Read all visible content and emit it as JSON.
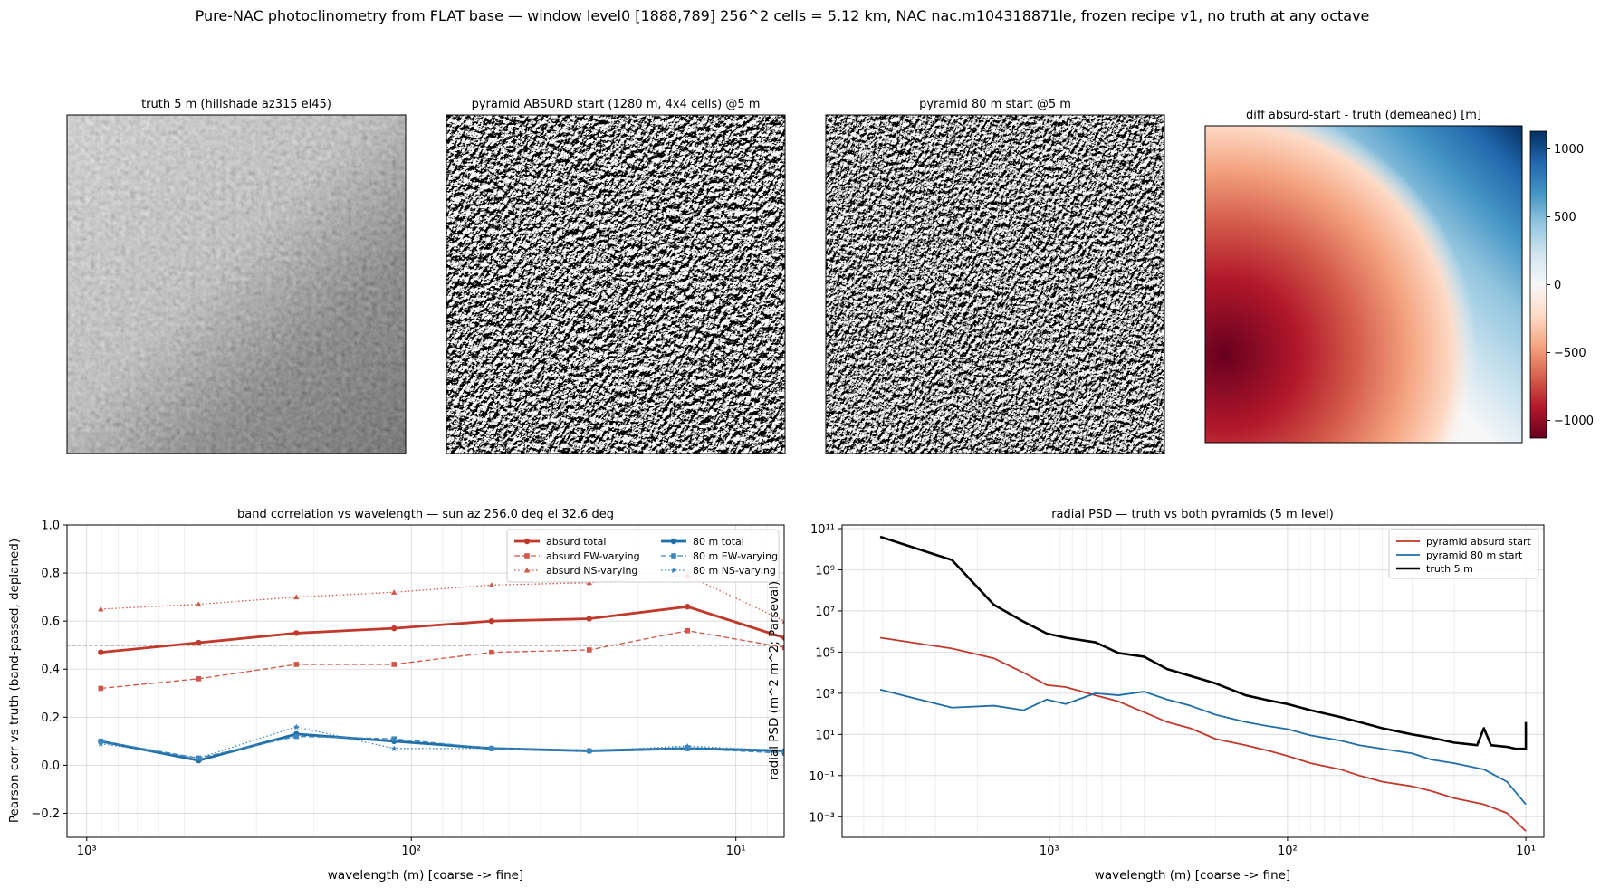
{
  "suptitle": "Pure-NAC photoclinometry from FLAT base — window level0 [1888,789] 256^2 cells = 5.12 km, NAC nac.m104318871le, frozen recipe v1, no truth at any octave",
  "panels": {
    "truth": {
      "title": "truth 5 m (hillshade az315 el45)"
    },
    "absurd": {
      "title": "pyramid ABSURD start (1280 m, 4x4 cells) @5 m"
    },
    "start80": {
      "title": "pyramid 80 m start @5 m"
    },
    "diff": {
      "title": "diff absurd-start - truth (demeaned) [m]",
      "colorbar_ticks": [
        "1000",
        "500",
        "0",
        "−500",
        "−1000"
      ],
      "colorbar_range": [
        -1130,
        1130
      ],
      "colormap": [
        "#67001f",
        "#b2182b",
        "#d6604d",
        "#f4a582",
        "#fddbc7",
        "#f7f7f7",
        "#d1e5f0",
        "#92c5de",
        "#4393c3",
        "#2166ac",
        "#053061"
      ]
    }
  },
  "chart_data": [
    {
      "type": "line",
      "title": "band correlation vs wavelength — sun az 256.0 deg el 32.6 deg",
      "xlabel": "wavelength (m)  [coarse -> fine]",
      "ylabel": "Pearson corr vs truth (band-passed, deplaned)",
      "xscale": "log",
      "xaxis_reversed": true,
      "xlim": [
        1150,
        7.1
      ],
      "ylim": [
        -0.3,
        1.0
      ],
      "xtick_labels": [
        "10³",
        "10²",
        "10¹"
      ],
      "ytick_labels": [
        "−0.2",
        "0.0",
        "0.2",
        "0.4",
        "0.6",
        "0.8",
        "1.0"
      ],
      "reference_line": {
        "y": 0.5,
        "style": "dashed",
        "color": "#000000"
      },
      "grid": true,
      "legend": {
        "placement": "top-right",
        "columns": 2
      },
      "x": [
        905,
        452,
        226,
        113,
        56.6,
        28.3,
        14.1,
        7.07
      ],
      "series": [
        {
          "name": "absurd total",
          "color": "#c0392b",
          "style": "solid",
          "marker": "circle",
          "values": [
            0.47,
            0.51,
            0.55,
            0.57,
            0.6,
            0.61,
            0.66,
            0.53
          ]
        },
        {
          "name": "absurd EW-varying",
          "color": "#d15548",
          "style": "dashed",
          "marker": "square",
          "values": [
            0.32,
            0.36,
            0.42,
            0.42,
            0.47,
            0.48,
            0.56,
            0.49
          ]
        },
        {
          "name": "absurd NS-varying",
          "color": "#d15548",
          "style": "dotted",
          "marker": "triangle",
          "values": [
            0.65,
            0.67,
            0.7,
            0.72,
            0.75,
            0.76,
            0.79,
            0.6
          ]
        },
        {
          "name": "80 m total",
          "color": "#1f6ea8",
          "style": "solid",
          "marker": "circle",
          "values": [
            0.1,
            0.02,
            0.13,
            0.1,
            0.07,
            0.06,
            0.07,
            0.06
          ]
        },
        {
          "name": "80 m EW-varying",
          "color": "#3c86bf",
          "style": "dashed",
          "marker": "square",
          "values": [
            0.1,
            0.03,
            0.12,
            0.11,
            0.07,
            0.06,
            0.07,
            0.05
          ]
        },
        {
          "name": "80 m NS-varying",
          "color": "#3c86bf",
          "style": "dotted",
          "marker": "star",
          "values": [
            0.09,
            0.03,
            0.16,
            0.07,
            0.07,
            0.06,
            0.08,
            0.06
          ]
        }
      ]
    },
    {
      "type": "line",
      "title": "radial PSD — truth vs both pyramids (5 m level)",
      "xlabel": "wavelength (m)  [coarse -> fine]",
      "ylabel": "radial PSD (m^2 m^2; Parseval)",
      "xscale": "log",
      "yscale": "log",
      "xaxis_reversed": true,
      "xlim": [
        7400,
        8.4
      ],
      "ylim": [
        0.0001,
        150000000000
      ],
      "xtick_labels": [
        "10³",
        "10²",
        "10¹"
      ],
      "ytick_labels": [
        "10¹¹",
        "10⁹",
        "10⁷",
        "10⁵",
        "10³",
        "10¹",
        "10⁻¹",
        "10⁻³"
      ],
      "grid": true,
      "legend": {
        "placement": "top-right"
      },
      "series": [
        {
          "name": "pyramid absurd start",
          "color": "#c0392b",
          "x": [
            5120,
            2560,
            1707,
            1280,
            1024,
            853,
            640,
            512,
            400,
            320,
            256,
            200,
            150,
            120,
            100,
            80,
            60,
            50,
            40,
            30,
            25,
            20,
            15,
            12,
            10
          ],
          "values": [
            500000,
            150000,
            50000,
            10000,
            2500,
            2000,
            800,
            400,
            120,
            40,
            20,
            6,
            3,
            1.6,
            0.9,
            0.4,
            0.2,
            0.1,
            0.05,
            0.03,
            0.018,
            0.008,
            0.004,
            0.0015,
            0.0002
          ]
        },
        {
          "name": "pyramid 80 m start",
          "color": "#1f6ea8",
          "x": [
            5120,
            2560,
            1707,
            1280,
            1024,
            853,
            640,
            512,
            400,
            320,
            256,
            200,
            150,
            120,
            100,
            80,
            60,
            50,
            40,
            30,
            25,
            20,
            15,
            12,
            10
          ],
          "values": [
            1500,
            200,
            250,
            150,
            500,
            300,
            1000,
            800,
            1200,
            500,
            250,
            90,
            40,
            25,
            18,
            9,
            5,
            3,
            2,
            1.2,
            0.6,
            0.4,
            0.2,
            0.05,
            0.004
          ]
        },
        {
          "name": "truth 5 m",
          "color": "#000000",
          "x": [
            5120,
            2560,
            1707,
            1280,
            1024,
            853,
            640,
            512,
            400,
            320,
            256,
            200,
            150,
            120,
            100,
            80,
            60,
            50,
            40,
            30,
            25,
            20,
            16,
            15,
            14,
            12,
            11,
            10,
            10
          ],
          "values": [
            40000000000,
            3000000000,
            20000000,
            3000000,
            800000,
            500000,
            300000,
            90000,
            60000,
            15000,
            7000,
            3000,
            800,
            450,
            300,
            150,
            70,
            40,
            20,
            10,
            7,
            4,
            3,
            20,
            3,
            2.5,
            2,
            2,
            40
          ]
        }
      ]
    }
  ]
}
